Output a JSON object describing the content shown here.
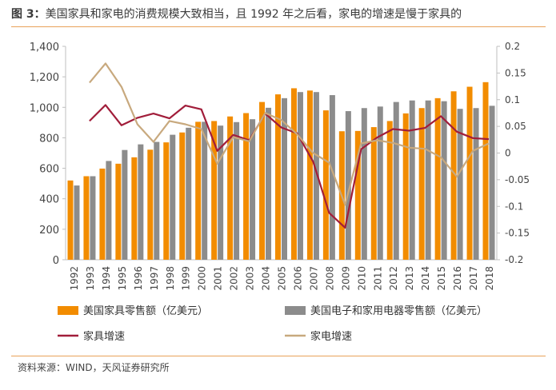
{
  "title": {
    "lead": "图 3：",
    "text": "美国家具和家电的消费规模大致相当，且 1992 年之后看，家电的增速是慢于家具的"
  },
  "source": "资料来源：WIND，天风证券研究所",
  "colors": {
    "furniture_bar": "#f28c00",
    "appliance_bar": "#8c8c8c",
    "furniture_growth": "#a11d3a",
    "appliance_growth": "#c8a97e",
    "rule": "#e8a15a",
    "axis": "#bfbfbf"
  },
  "chart_data": {
    "type": "bar",
    "categories": [
      "1992",
      "1993",
      "1994",
      "1995",
      "1996",
      "1997",
      "1998",
      "1999",
      "2000",
      "2001",
      "2002",
      "2003",
      "2004",
      "2005",
      "2006",
      "2007",
      "2008",
      "2009",
      "2010",
      "2011",
      "2012",
      "2013",
      "2014",
      "2015",
      "2016",
      "2017",
      "2018"
    ],
    "left_axis": {
      "min": 0,
      "max": 1400,
      "ticks": [
        "0",
        "200",
        "400",
        "600",
        "800",
        "1,000",
        "1,200",
        "1,400"
      ]
    },
    "right_axis": {
      "min": -0.2,
      "max": 0.2,
      "ticks": [
        "-0.2",
        "-0.15",
        "-0.1",
        "-0.05",
        "0",
        "0.05",
        "0.1",
        "0.15",
        "0.2"
      ]
    },
    "series": [
      {
        "name": "美国家具零售额（亿美元）",
        "type": "bar",
        "axis": "left",
        "values": [
          520,
          548,
          598,
          630,
          672,
          722,
          770,
          835,
          905,
          910,
          940,
          962,
          1035,
          1085,
          1125,
          1110,
          980,
          843,
          845,
          870,
          910,
          960,
          995,
          1060,
          1105,
          1135,
          1165
        ]
      },
      {
        "name": "美国电子和家用电器零售额（亿美元）",
        "type": "bar",
        "axis": "left",
        "values": [
          487,
          548,
          648,
          720,
          757,
          773,
          820,
          866,
          905,
          880,
          903,
          922,
          997,
          1060,
          1100,
          1100,
          1080,
          975,
          995,
          1005,
          1035,
          1045,
          1045,
          1040,
          990,
          995,
          1010
        ]
      },
      {
        "name": "家具增速",
        "type": "line",
        "axis": "right",
        "values": [
          null,
          0.06,
          0.09,
          0.052,
          0.066,
          0.074,
          0.065,
          0.089,
          0.082,
          0.004,
          0.034,
          0.024,
          0.074,
          0.048,
          0.037,
          -0.016,
          -0.112,
          -0.14,
          0.007,
          0.029,
          0.045,
          0.042,
          0.047,
          0.069,
          0.04,
          0.028,
          0.026
        ]
      },
      {
        "name": "家电增速",
        "type": "line",
        "axis": "right",
        "values": [
          null,
          0.132,
          0.168,
          0.124,
          0.054,
          0.021,
          0.06,
          0.054,
          0.045,
          -0.02,
          0.03,
          0.022,
          0.075,
          0.062,
          0.035,
          0.0,
          -0.018,
          -0.097,
          0.018,
          0.024,
          0.019,
          0.01,
          0.008,
          -0.008,
          -0.044,
          0.004,
          0.018
        ]
      }
    ],
    "legend": "bottom",
    "grid": false
  }
}
